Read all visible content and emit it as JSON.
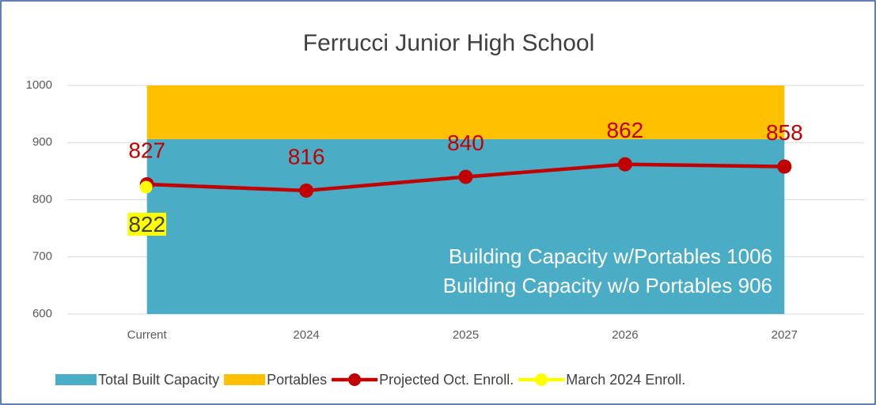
{
  "chart_data": {
    "type": "combo",
    "title": "Ferrucci Junior High School",
    "categories": [
      "Current",
      "2024",
      "2025",
      "2026",
      "2027"
    ],
    "series": [
      {
        "name": "Total Built Capacity",
        "type": "area",
        "color": "#4bacc6",
        "values": [
          906,
          906,
          906,
          906,
          906
        ]
      },
      {
        "name": "Portables",
        "type": "area",
        "color": "#ffc000",
        "values": [
          100,
          100,
          100,
          100,
          100
        ]
      },
      {
        "name": "Projected Oct. Enroll.",
        "type": "line",
        "color": "#c00000",
        "values": [
          827,
          816,
          840,
          862,
          858
        ]
      },
      {
        "name": "March 2024 Enroll.",
        "type": "line",
        "color": "#ffff00",
        "values": [
          822,
          null,
          null,
          null,
          null
        ]
      }
    ],
    "annotations": [
      "Building Capacity w/Portables 1006",
      "Building Capacity w/o Portables 906"
    ],
    "ylim": [
      600,
      1000
    ],
    "yticks": [
      600,
      700,
      800,
      900,
      1000
    ],
    "grid": true,
    "legend": "bottom"
  }
}
